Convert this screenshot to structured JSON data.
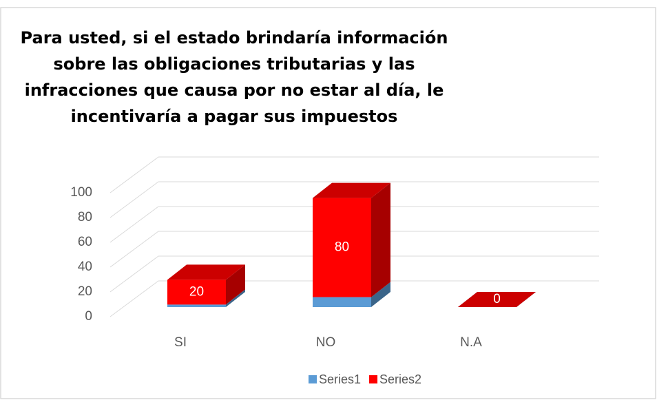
{
  "chart_data": {
    "type": "bar3d_stacked",
    "title": "Para usted, si el estado brindaría información sobre las obligaciones tributarias y las infracciones que causa por no estar al día, le incentivaría a pagar sus impuestos",
    "categories": [
      "SI",
      "NO",
      "N.A"
    ],
    "series": [
      {
        "name": "Series1",
        "color": "#5b9bd5",
        "values": [
          2,
          8,
          0
        ]
      },
      {
        "name": "Series2",
        "color": "#ff0000",
        "values": [
          20,
          80,
          0
        ]
      }
    ],
    "ylim": [
      0,
      100
    ],
    "yticks": [
      0,
      20,
      40,
      60,
      80,
      100
    ],
    "grid": true,
    "legend": "bottom"
  }
}
